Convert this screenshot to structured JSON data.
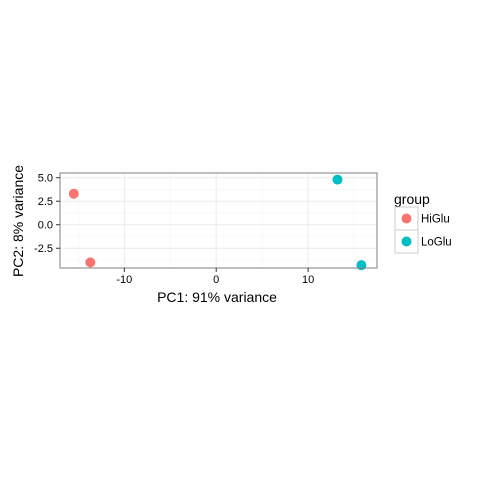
{
  "chart_data": {
    "type": "scatter",
    "title": "",
    "xlabel": "PC1: 91% variance",
    "ylabel": "PC2: 8% variance",
    "xlim": [
      -17,
      17.5
    ],
    "ylim": [
      -4.6,
      5.5
    ],
    "x_ticks": [
      -10,
      0,
      10
    ],
    "x_tick_labels": [
      "-10",
      "0",
      "10"
    ],
    "y_ticks": [
      -2.5,
      0.0,
      2.5,
      5.0
    ],
    "y_tick_labels": [
      "-2.5",
      "0.0",
      "2.5",
      "5.0"
    ],
    "grid": true,
    "legend": {
      "title": "group",
      "position": "right",
      "entries": [
        {
          "label": "HiGlu",
          "color": "#F8766D"
        },
        {
          "label": "LoGlu",
          "color": "#00BFC4"
        }
      ]
    },
    "series": [
      {
        "name": "HiGlu",
        "color": "#F8766D",
        "points": [
          {
            "x": -15.5,
            "y": 3.3
          },
          {
            "x": -13.7,
            "y": -4.0
          }
        ]
      },
      {
        "name": "LoGlu",
        "color": "#00BFC4",
        "points": [
          {
            "x": 13.2,
            "y": 4.8
          },
          {
            "x": 15.8,
            "y": -4.3
          }
        ]
      }
    ]
  }
}
